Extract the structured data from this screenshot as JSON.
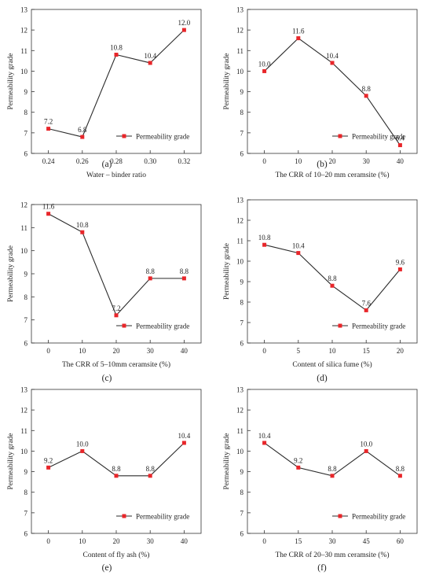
{
  "colors": {
    "line": "#2b2b2b",
    "marker": "#e8262a",
    "axis": "#333333"
  },
  "chart_data": [
    {
      "type": "line",
      "panel_label": "(a)",
      "xlabel": "Water – binder ratio",
      "ylabel": "Permeability grade",
      "x": [
        0.24,
        0.26,
        0.28,
        0.3,
        0.32
      ],
      "xticks": [
        "0.24",
        "0.26",
        "0.28",
        "0.30",
        "0.32"
      ],
      "xlim": [
        0.23,
        0.33
      ],
      "ylim": [
        6,
        13
      ],
      "yticks": [
        "6",
        "7",
        "8",
        "9",
        "10",
        "11",
        "12",
        "13"
      ],
      "series": [
        {
          "name": "Permeability grade",
          "values": [
            7.2,
            6.8,
            10.8,
            10.4,
            12.0
          ],
          "labels": [
            "7.2",
            "6.8",
            "10.8",
            "10.4",
            "12.0"
          ]
        }
      ],
      "legend": "bottom-right"
    },
    {
      "type": "line",
      "panel_label": "(b)",
      "xlabel": "The CRR of 10–20 mm ceramsite (%)",
      "ylabel": "Permeability grade",
      "x": [
        0,
        10,
        20,
        30,
        40
      ],
      "xticks": [
        "0",
        "10",
        "20",
        "30",
        "40"
      ],
      "xlim": [
        -5,
        45
      ],
      "ylim": [
        6,
        13
      ],
      "yticks": [
        "6",
        "7",
        "8",
        "9",
        "10",
        "11",
        "12",
        "13"
      ],
      "series": [
        {
          "name": "Permeability grade",
          "values": [
            10.0,
            11.6,
            10.4,
            8.8,
            6.4
          ],
          "labels": [
            "10.0",
            "11.6",
            "10.4",
            "8.8",
            "6.4"
          ]
        }
      ],
      "legend": "bottom-right"
    },
    {
      "type": "line",
      "panel_label": "(c)",
      "xlabel": "The CRR of 5–10mm ceramsite (%)",
      "ylabel": "Permeability grade",
      "x": [
        0,
        10,
        20,
        30,
        40
      ],
      "xticks": [
        "0",
        "10",
        "20",
        "30",
        "40"
      ],
      "xlim": [
        -5,
        45
      ],
      "ylim": [
        6,
        12
      ],
      "yticks": [
        "6",
        "7",
        "8",
        "9",
        "10",
        "11",
        "12"
      ],
      "series": [
        {
          "name": "Permeability grade",
          "values": [
            11.6,
            10.8,
            7.2,
            8.8,
            8.8
          ],
          "labels": [
            "11.6",
            "10.8",
            "7.2",
            "8.8",
            "8.8"
          ]
        }
      ],
      "legend": "bottom-right"
    },
    {
      "type": "line",
      "panel_label": "(d)",
      "xlabel": "Content of  silica fume (%)",
      "ylabel": "Permeability grade",
      "x": [
        0,
        5,
        10,
        15,
        20
      ],
      "xticks": [
        "0",
        "5",
        "10",
        "15",
        "20"
      ],
      "xlim": [
        -2.5,
        22.5
      ],
      "ylim": [
        6,
        13
      ],
      "yticks": [
        "6",
        "7",
        "8",
        "9",
        "10",
        "11",
        "12",
        "13"
      ],
      "series": [
        {
          "name": "Permeability grade",
          "values": [
            10.8,
            10.4,
            8.8,
            7.6,
            9.6
          ],
          "labels": [
            "10.8",
            "10.4",
            "8.8",
            "7.6",
            "9.6"
          ]
        }
      ],
      "legend": "bottom-right"
    },
    {
      "type": "line",
      "panel_label": "(e)",
      "xlabel": "Content of fly ash (%)",
      "ylabel": "Permeability grade",
      "x": [
        0,
        10,
        20,
        30,
        40
      ],
      "xticks": [
        "0",
        "10",
        "20",
        "30",
        "40"
      ],
      "xlim": [
        -5,
        45
      ],
      "ylim": [
        6,
        13
      ],
      "yticks": [
        "6",
        "7",
        "8",
        "9",
        "10",
        "11",
        "12",
        "13"
      ],
      "series": [
        {
          "name": "Permeability grade",
          "values": [
            9.2,
            10.0,
            8.8,
            8.8,
            10.4
          ],
          "labels": [
            "9.2",
            "10.0",
            "8.8",
            "8.8",
            "10.4"
          ]
        }
      ],
      "legend": "bottom-right"
    },
    {
      "type": "line",
      "panel_label": "(f)",
      "xlabel": "The CRR of 20–30 mm ceramsite (%)",
      "ylabel": "Permeability grade",
      "x": [
        0,
        15,
        30,
        45,
        60
      ],
      "xticks": [
        "0",
        "15",
        "30",
        "45",
        "60"
      ],
      "xlim": [
        -7.5,
        67.5
      ],
      "ylim": [
        6,
        13
      ],
      "yticks": [
        "6",
        "7",
        "8",
        "9",
        "10",
        "11",
        "12",
        "13"
      ],
      "series": [
        {
          "name": "Permeability grade",
          "values": [
            10.4,
            9.2,
            8.8,
            10.0,
            8.8
          ],
          "labels": [
            "10.4",
            "9.2",
            "8.8",
            "10.0",
            "8.8"
          ]
        }
      ],
      "legend": "bottom-right"
    }
  ]
}
